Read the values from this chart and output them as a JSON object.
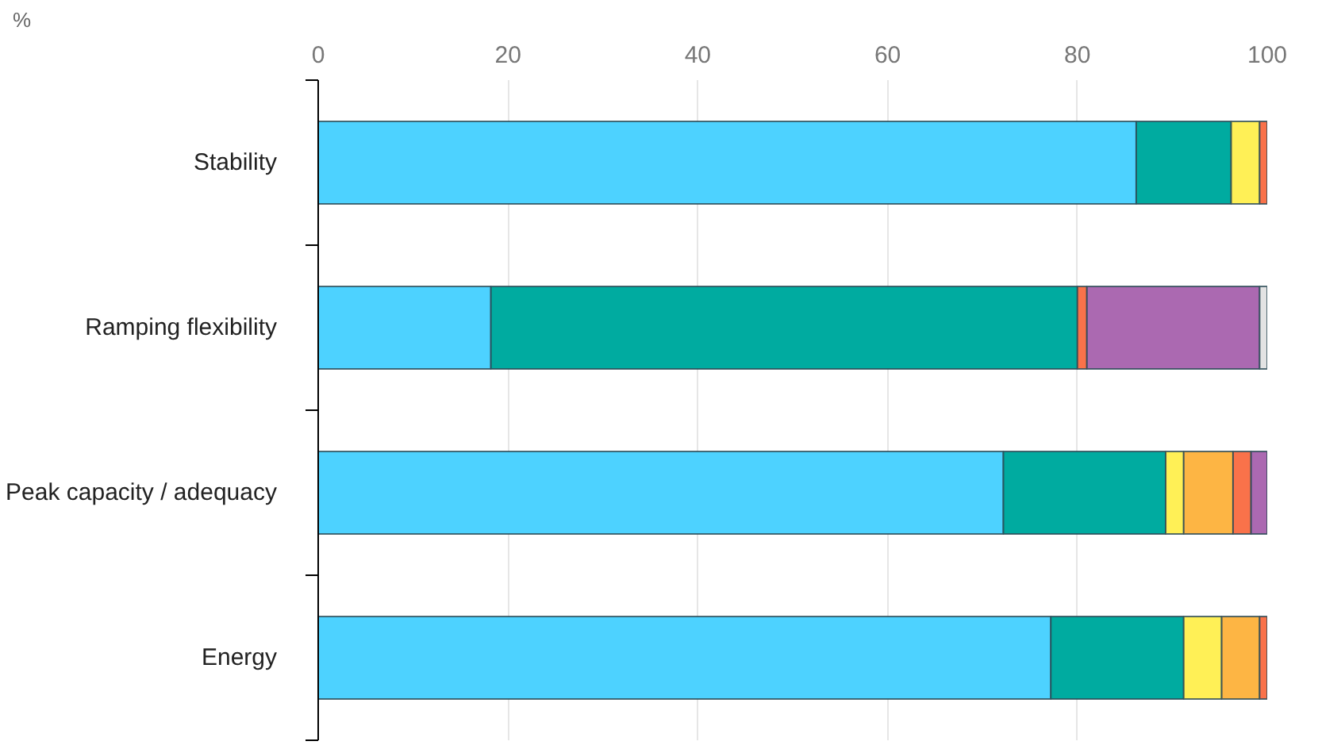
{
  "chart_data": {
    "type": "bar",
    "orientation": "horizontal",
    "stacked": true,
    "annotations": [
      "%"
    ],
    "categories": [
      "Stability",
      "Ramping flexibility",
      "Peak capacity / adequacy",
      "Energy"
    ],
    "series": [
      {
        "color": "#4dd2ff",
        "values": [
          86.2,
          18.2,
          72.2,
          77.2
        ]
      },
      {
        "color": "#00aba0",
        "values": [
          10.0,
          61.8,
          17.1,
          14.0
        ]
      },
      {
        "color": "#fff056",
        "values": [
          3.0,
          null,
          1.9,
          4.0
        ]
      },
      {
        "color": "#fdb544",
        "values": [
          null,
          null,
          5.2,
          4.0
        ]
      },
      {
        "color": "#f9724a",
        "values": [
          0.8,
          1.0,
          1.9,
          0.8
        ]
      },
      {
        "color": "#ab69b1",
        "values": [
          null,
          18.2,
          1.7,
          null
        ]
      },
      {
        "color": "#e3e3e3",
        "values": [
          null,
          0.8,
          null,
          null
        ]
      }
    ],
    "xlim": [
      0,
      100
    ],
    "xticks": [
      0,
      20,
      40,
      60,
      80,
      100
    ],
    "grid": "x"
  }
}
